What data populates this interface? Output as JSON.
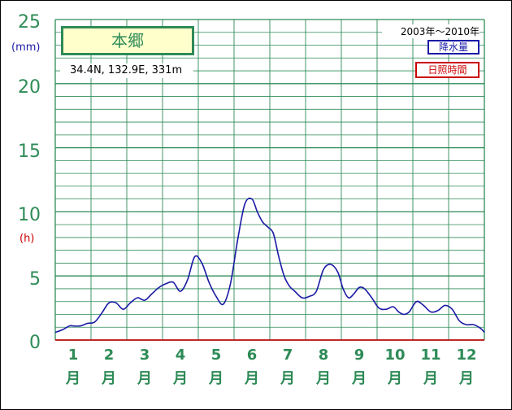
{
  "station": {
    "name": "本郷",
    "coords": "34.4N,  132.9E,  331m"
  },
  "period": "2003年～2010年",
  "legend": {
    "precip": "降水量",
    "sunshine": "日照時間"
  },
  "axes": {
    "left_unit_top": "(mm)",
    "left_unit_mid": "(h)",
    "month_suffix": "月"
  },
  "colors": {
    "grid": "#2e8b57",
    "precip_line": "#1a1aa6",
    "sunshine_line": "#cc0000",
    "label_box_fill": "#ffffcc"
  },
  "chart_data": {
    "type": "line",
    "title": "本郷",
    "subtitle": "2003年～2010年",
    "xlabel": "",
    "ylabel": "(mm) / (h)",
    "xlim": [
      0.5,
      12.5
    ],
    "ylim": [
      0,
      25
    ],
    "yticks": [
      0,
      5,
      10,
      15,
      20,
      25
    ],
    "categories": [
      "1",
      "2",
      "3",
      "4",
      "5",
      "6",
      "7",
      "8",
      "9",
      "10",
      "11",
      "12"
    ],
    "grid": true,
    "legend": "top-right",
    "series": [
      {
        "name": "降水量",
        "x": [
          0.5,
          0.7,
          0.9,
          1.0,
          1.2,
          1.4,
          1.6,
          1.8,
          2.0,
          2.2,
          2.4,
          2.6,
          2.8,
          3.0,
          3.2,
          3.4,
          3.6,
          3.8,
          4.0,
          4.2,
          4.4,
          4.6,
          4.8,
          5.0,
          5.2,
          5.4,
          5.6,
          5.8,
          6.0,
          6.15,
          6.3,
          6.45,
          6.6,
          6.75,
          6.9,
          7.05,
          7.2,
          7.4,
          7.6,
          7.8,
          8.0,
          8.2,
          8.4,
          8.55,
          8.7,
          8.85,
          9.0,
          9.15,
          9.35,
          9.55,
          9.75,
          9.95,
          10.1,
          10.25,
          10.4,
          10.6,
          10.8,
          11.0,
          11.2,
          11.4,
          11.6,
          11.8,
          12.0,
          12.2,
          12.4,
          12.5
        ],
        "values": [
          0.6,
          0.8,
          1.1,
          1.1,
          1.1,
          1.3,
          1.4,
          2.1,
          2.9,
          2.9,
          2.4,
          2.9,
          3.3,
          3.1,
          3.6,
          4.1,
          4.4,
          4.5,
          3.8,
          4.7,
          6.5,
          6.0,
          4.5,
          3.4,
          2.8,
          4.4,
          7.8,
          10.6,
          11.0,
          10.0,
          9.2,
          8.8,
          8.3,
          6.5,
          5.0,
          4.2,
          3.8,
          3.3,
          3.4,
          3.8,
          5.5,
          5.9,
          5.3,
          4.0,
          3.3,
          3.6,
          4.1,
          4.0,
          3.3,
          2.5,
          2.4,
          2.6,
          2.2,
          2.0,
          2.2,
          3.0,
          2.7,
          2.2,
          2.3,
          2.7,
          2.4,
          1.5,
          1.2,
          1.2,
          0.9,
          0.6
        ]
      },
      {
        "name": "日照時間",
        "x": [
          0.5,
          12.5
        ],
        "values": [
          0,
          0
        ]
      }
    ]
  }
}
